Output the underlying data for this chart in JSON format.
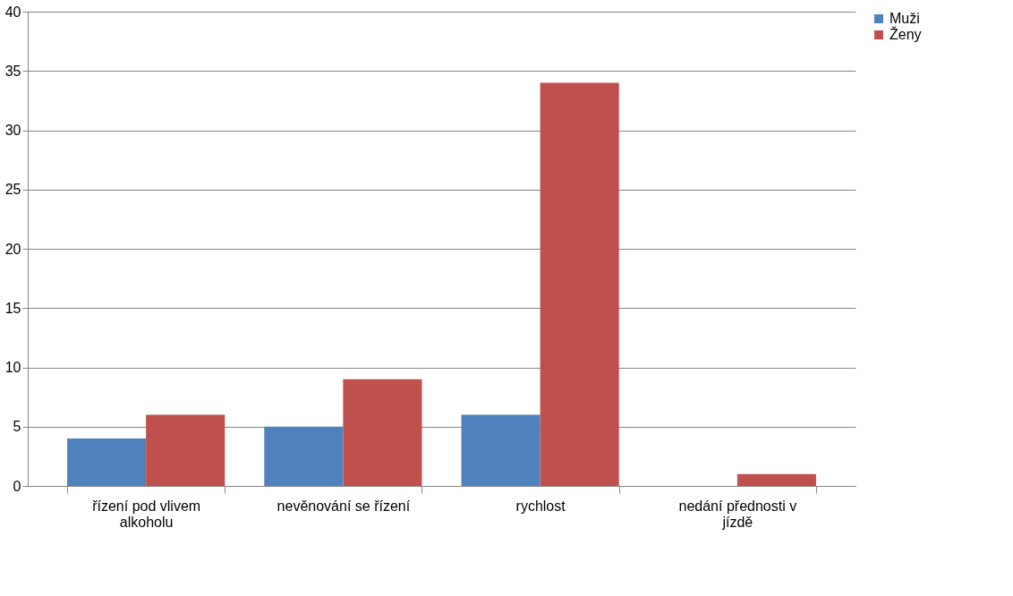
{
  "chart_data": {
    "type": "bar",
    "categories": [
      "řízení pod vlivem alkoholu",
      "nevěnování se řízení",
      "rychlost",
      "nedání přednosti v jízdě"
    ],
    "series": [
      {
        "name": "Muži",
        "color": "#4f81bd",
        "values": [
          4,
          5,
          6,
          0
        ]
      },
      {
        "name": "Ženy",
        "color": "#c0504d",
        "values": [
          6,
          9,
          34,
          1
        ]
      }
    ],
    "ylim": [
      0,
      40
    ],
    "yticks": [
      0,
      5,
      10,
      15,
      20,
      25,
      30,
      35,
      40
    ],
    "grid": "y",
    "legend": "right"
  }
}
